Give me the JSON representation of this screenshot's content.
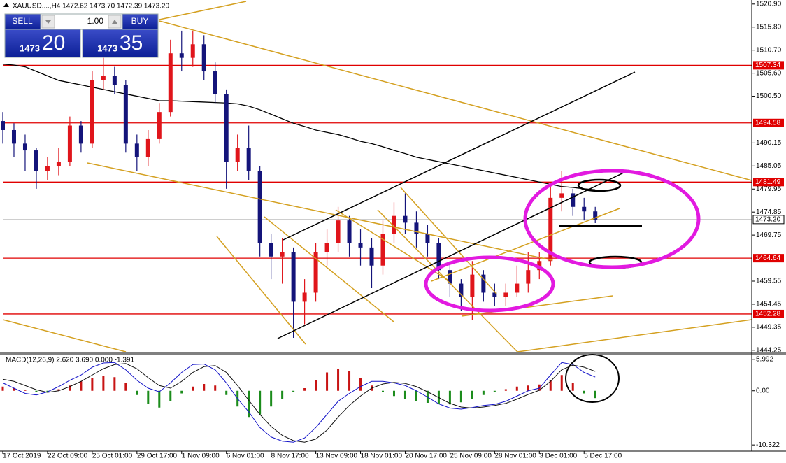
{
  "trade_panel": {
    "sell": "SELL",
    "lot": "1.00",
    "buy": "BUY",
    "sell_big": "1473",
    "sell_small": "20",
    "buy_big": "1473",
    "buy_small": "35"
  },
  "chart_data": [
    {
      "type": "candlestick",
      "title": "XAUUSD....,H4  1472.62 1473.70 1472.39 1473.20",
      "xlim": [
        0,
        67
      ],
      "ylim": [
        1443.6,
        1521.8
      ],
      "yticks": [
        {
          "value": 1520.9,
          "label": "1520.90"
        },
        {
          "value": 1515.8,
          "label": "1515.80"
        },
        {
          "value": 1510.7,
          "label": "1510.70"
        },
        {
          "value": 1505.6,
          "label": "1505.60"
        },
        {
          "value": 1500.5,
          "label": "1500.50"
        },
        1490.15,
        1485.05,
        1479.95,
        1474.85,
        1469.75,
        1459.55,
        1454.45,
        1449.35,
        1444.25
      ],
      "up_color": "#e0151b",
      "down_color": "#14147a",
      "open": [
        1495,
        1493,
        1490,
        1488.5,
        1484,
        1485,
        1486,
        1494,
        1490,
        1504,
        1505,
        1503,
        1490,
        1487,
        1491,
        1497,
        1510,
        1509,
        1512,
        1506,
        1501,
        1486,
        1489,
        1484,
        1468,
        1465,
        1466,
        1455,
        1457,
        1466,
        1468,
        1473,
        1468,
        1467,
        1463,
        1470,
        1474,
        1472.5,
        1470,
        1468,
        1462,
        1459,
        1456,
        1461,
        1457,
        1456,
        1457,
        1459,
        1462,
        1464,
        1478,
        1479,
        1476,
        1475
      ],
      "high": [
        1497,
        1494.5,
        1492,
        1489,
        1487,
        1489,
        1496,
        1495,
        1506,
        1509,
        1507,
        1504,
        1492,
        1493,
        1499,
        1513,
        1515,
        1515,
        1514,
        1508,
        1502,
        1492,
        1494,
        1485,
        1470,
        1469,
        1467,
        1460,
        1468,
        1471,
        1476,
        1474,
        1471,
        1469,
        1473,
        1477,
        1479,
        1475,
        1472,
        1469,
        1464,
        1460,
        1464,
        1462,
        1459,
        1459,
        1463,
        1466,
        1466,
        1481,
        1484,
        1480,
        1478,
        1476
      ],
      "low": [
        1490,
        1487,
        1484,
        1480,
        1482,
        1483,
        1485,
        1488,
        1489,
        1502,
        1501,
        1488,
        1484,
        1485,
        1490,
        1496,
        1506,
        1507,
        1504,
        1499,
        1480,
        1484,
        1482,
        1465,
        1460,
        1459,
        1447,
        1450,
        1455,
        1463,
        1466,
        1465,
        1463,
        1458,
        1461,
        1468,
        1470,
        1467,
        1465,
        1460,
        1456,
        1453,
        1451,
        1455,
        1454,
        1454,
        1456,
        1457,
        1460,
        1463,
        1475,
        1474,
        1473,
        1472.4
      ],
      "close": [
        1493,
        1490,
        1488.5,
        1484,
        1485,
        1486,
        1494,
        1490,
        1504,
        1505,
        1503,
        1490,
        1487,
        1491,
        1497,
        1510,
        1509,
        1512,
        1506,
        1501,
        1486,
        1489,
        1484,
        1468,
        1465,
        1466,
        1455,
        1457,
        1466,
        1468,
        1473,
        1468,
        1467,
        1463,
        1470,
        1474,
        1472.5,
        1470,
        1468,
        1462,
        1459,
        1456,
        1461,
        1457,
        1456,
        1457,
        1459,
        1462,
        1464,
        1478,
        1479,
        1476,
        1475,
        1473.2
      ],
      "ma": {
        "color": "#000000",
        "values": [
          1507.6,
          1507.4,
          1507,
          1506,
          1505,
          1504,
          1503.5,
          1503,
          1502.5,
          1502,
          1501.5,
          1501,
          1500.5,
          1500,
          1499.5,
          1499.5,
          1499.4,
          1499.3,
          1499.2,
          1499.1,
          1499,
          1498.8,
          1498.3,
          1497.5,
          1496.5,
          1495.5,
          1494.5,
          1493.8,
          1493,
          1492.5,
          1492,
          1491.3,
          1490.5,
          1490,
          1489.3,
          1488.5,
          1487.8,
          1487,
          1486.5,
          1486,
          1485.5,
          1485,
          1484.5,
          1484,
          1483.5,
          1483,
          1482.5,
          1482,
          1481.5,
          1481,
          1480.5,
          1480.3,
          1480,
          1479.8
        ]
      },
      "levels": [
        1507.34,
        1494.58,
        1481.49,
        1464.64,
        1452.28
      ],
      "level_color": "#e00000",
      "bid": {
        "value": 1473.2,
        "label": "1473.20"
      }
    },
    {
      "type": "macd",
      "title": "MACD(12,26,9) 2.620 3.690 0.000 -1.391",
      "xlim": [
        0,
        67
      ],
      "ylim": [
        -11.5,
        6.9
      ],
      "xticks": [
        {
          "value": 0,
          "label": "17 Oct 2019"
        },
        {
          "value": 4,
          "label": "22 Oct 09:00"
        },
        {
          "value": 8,
          "label": "25 Oct 01:00"
        },
        {
          "value": 12,
          "label": "29 Oct 17:00"
        },
        {
          "value": 16,
          "label": "1 Nov 09:00"
        },
        {
          "value": 20,
          "label": "6 Nov 01:00"
        },
        {
          "value": 24,
          "label": "8 Nov 17:00"
        },
        {
          "value": 28,
          "label": "13 Nov 09:00"
        },
        {
          "value": 32,
          "label": "18 Nov 01:00"
        },
        {
          "value": 36,
          "label": "20 Nov 17:00"
        },
        {
          "value": 40,
          "label": "25 Nov 09:00"
        },
        {
          "value": 44,
          "label": "28 Nov 01:00"
        },
        {
          "value": 48,
          "label": "3 Dec 01:00"
        },
        {
          "value": 52,
          "label": "5 Dec 17:00"
        }
      ],
      "yticks": [
        5.992,
        {
          "value": 0,
          "label": "0.00"
        },
        -10.322
      ],
      "up_color": "#c81414",
      "down_color": "#1c8c1c",
      "histogram": [
        0.8,
        0.5,
        0.2,
        -0.3,
        -0.2,
        0.3,
        1,
        1.8,
        2.5,
        2.8,
        2.6,
        1.5,
        -0.8,
        -2.5,
        -3.2,
        -2,
        -0.5,
        0.8,
        1.3,
        1,
        -0.8,
        -3,
        -5,
        -4.5,
        -3,
        -1.5,
        -0.3,
        0.5,
        2,
        3.5,
        4.2,
        3.8,
        2.5,
        1,
        -0.3,
        -1,
        -1.5,
        -2,
        -2.3,
        -2.5,
        -2.6,
        -2.2,
        -1.5,
        -0.8,
        -0.3,
        0.3,
        0.8,
        1,
        1.2,
        2,
        3,
        1.5,
        -0.5,
        -1.391
      ],
      "series": [
        {
          "color": "#1414c8",
          "values": [
            1.5,
            0.5,
            -0.5,
            -0.8,
            -0.2,
            0.8,
            2,
            3,
            4.5,
            5.3,
            5.4,
            4,
            2,
            0.5,
            -0.2,
            1.5,
            3.5,
            5,
            5.1,
            4,
            1.5,
            -1.5,
            -4,
            -7,
            -8.8,
            -9.6,
            -9.8,
            -9,
            -7,
            -4.5,
            -2,
            -0.5,
            0.8,
            1.8,
            1.8,
            1.5,
            1,
            0,
            -1.2,
            -2.5,
            -3.3,
            -3.5,
            -3.2,
            -2.8,
            -2.6,
            -2,
            -1,
            0,
            0.5,
            3,
            5.4,
            5,
            3.5,
            2.62
          ]
        },
        {
          "color": "#111111",
          "values": [
            2.2,
            1.8,
            1,
            0.2,
            -0.3,
            0,
            0.8,
            1.8,
            3,
            4.2,
            5,
            5.2,
            4.2,
            2.5,
            1,
            0.5,
            1.8,
            3.5,
            4.6,
            4.8,
            3.5,
            1,
            -1.8,
            -4.5,
            -6.8,
            -8.5,
            -9.5,
            -9.8,
            -9.2,
            -7.5,
            -5,
            -2.8,
            -1,
            0.5,
            1.3,
            1.6,
            1.4,
            0.8,
            -0.2,
            -1.3,
            -2.4,
            -3.1,
            -3.3,
            -3.1,
            -2.8,
            -2.4,
            -1.6,
            -0.7,
            0.1,
            1.8,
            4,
            4.9,
            4.5,
            3.69
          ]
        }
      ]
    }
  ]
}
